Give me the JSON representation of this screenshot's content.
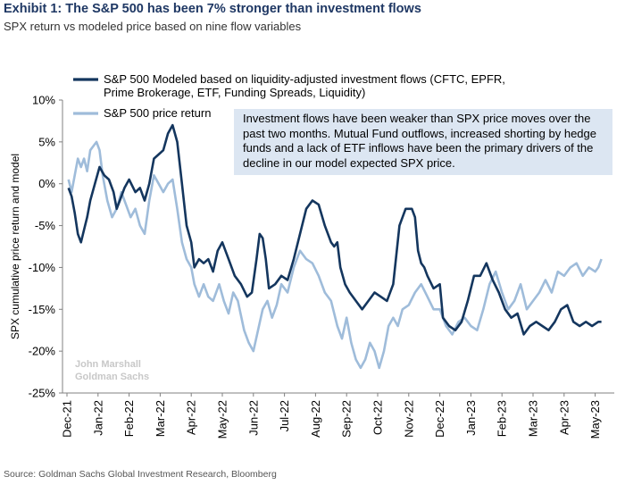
{
  "title": "Exhibit 1: The S&P 500 has been 7% stronger than investment flows",
  "subtitle": "SPX return vs modeled price based on nine flow variables",
  "source": "Source: Goldman Sachs Global Investment Research, Bloomberg",
  "watermark": [
    "John Marshall",
    "Goldman Sachs"
  ],
  "annotation": "Investment flows have been weaker than SPX price moves over the past two months. Mutual Fund outflows, increased shorting by hedge funds and a lack of ETF inflows have been the primary drivers of the decline in our model expected SPX price.",
  "colors": {
    "modeled": "#14365e",
    "price": "#9fbcda",
    "annotation_bg": "#dce6f2",
    "title": "#1f3864"
  },
  "chart_data": {
    "type": "line",
    "ylabel": "SPX cumulative price return and model",
    "ylim": [
      -25,
      10
    ],
    "yticks": [
      10,
      5,
      0,
      -5,
      -10,
      -15,
      -20,
      -25
    ],
    "ytick_labels": [
      "10%",
      "5%",
      "0%",
      "-5%",
      "-10%",
      "-15%",
      "-20%",
      "-25%"
    ],
    "xlim": [
      0,
      17.5
    ],
    "xtick_labels": [
      "Dec-21",
      "Jan-22",
      "Feb-22",
      "Mar-22",
      "Apr-22",
      "May-22",
      "Jun-22",
      "Jul-22",
      "Aug-22",
      "Sep-22",
      "Oct-22",
      "Nov-22",
      "Dec-22",
      "Jan-23",
      "Feb-23",
      "Mar-23",
      "Apr-23",
      "May-23"
    ],
    "legend_position": "top-left",
    "grid": false,
    "series": [
      {
        "name": "S&P 500 Modeled based on liquidity-adjusted investment flows (CFTC, EPFR, Prime Brokerage, ETF, Funding Spreads, Liquidity)",
        "legend_lines": [
          "S&P 500 Modeled based on liquidity-adjusted investment flows (CFTC, EPFR,",
          "Prime Brokerage, ETF, Funding Spreads, Liquidity)"
        ],
        "x": [
          0.05,
          0.15,
          0.25,
          0.35,
          0.45,
          0.55,
          0.65,
          0.75,
          0.9,
          1.05,
          1.2,
          1.35,
          1.5,
          1.6,
          1.7,
          1.85,
          2.0,
          2.2,
          2.35,
          2.5,
          2.65,
          2.8,
          2.95,
          3.1,
          3.25,
          3.4,
          3.55,
          3.7,
          3.85,
          4.0,
          4.1,
          4.25,
          4.4,
          4.55,
          4.7,
          4.85,
          5.0,
          5.2,
          5.4,
          5.6,
          5.8,
          5.95,
          6.1,
          6.2,
          6.3,
          6.4,
          6.5,
          6.7,
          6.9,
          7.1,
          7.3,
          7.5,
          7.7,
          7.9,
          8.1,
          8.3,
          8.5,
          8.6,
          8.7,
          8.8,
          8.95,
          9.1,
          9.3,
          9.5,
          9.7,
          9.9,
          10.1,
          10.3,
          10.5,
          10.7,
          10.9,
          11.1,
          11.2,
          11.3,
          11.4,
          11.5,
          11.6,
          11.8,
          12.0,
          12.1,
          12.3,
          12.5,
          12.7,
          12.9,
          13.1,
          13.3,
          13.5,
          13.7,
          13.9,
          14.1,
          14.3,
          14.5,
          14.7,
          14.9,
          15.1,
          15.3,
          15.5,
          15.7,
          15.9,
          16.1,
          16.3,
          16.5,
          16.7,
          16.9,
          17.1,
          17.2
        ],
        "values": [
          -0.5,
          -1.5,
          -3.5,
          -6.0,
          -7.0,
          -5.5,
          -4.0,
          -2.0,
          0.0,
          2.0,
          1.0,
          0.5,
          -1.0,
          -3.0,
          -2.0,
          -0.5,
          0.5,
          -1.0,
          -0.5,
          -2.0,
          0.0,
          3.0,
          3.5,
          4.0,
          6.0,
          7.0,
          5.0,
          0.0,
          -5.0,
          -7.0,
          -10.0,
          -9.0,
          -9.5,
          -9.0,
          -10.5,
          -8.0,
          -7.0,
          -9.0,
          -11.0,
          -12.0,
          -13.5,
          -13.0,
          -9.0,
          -6.0,
          -6.5,
          -9.0,
          -12.5,
          -12.0,
          -11.0,
          -11.5,
          -9.0,
          -6.0,
          -3.0,
          -2.0,
          -2.5,
          -5.0,
          -7.0,
          -7.5,
          -7.0,
          -10.0,
          -12.0,
          -13.0,
          -14.0,
          -15.0,
          -14.0,
          -13.0,
          -13.5,
          -14.0,
          -12.0,
          -5.0,
          -3.0,
          -3.0,
          -4.0,
          -8.0,
          -9.5,
          -10.0,
          -11.0,
          -12.5,
          -12.0,
          -16.0,
          -17.0,
          -17.5,
          -16.5,
          -14.0,
          -11.0,
          -11.0,
          -9.5,
          -11.5,
          -13.0,
          -15.0,
          -16.0,
          -15.5,
          -18.0,
          -17.0,
          -16.5,
          -17.0,
          -17.5,
          -16.5,
          -15.0,
          -14.5,
          -16.5,
          -17.0,
          -16.5,
          -17.0,
          -16.5,
          -16.5
        ]
      },
      {
        "name": "S&P 500 price return",
        "x": [
          0.05,
          0.15,
          0.25,
          0.35,
          0.45,
          0.55,
          0.65,
          0.75,
          0.85,
          0.95,
          1.05,
          1.15,
          1.3,
          1.45,
          1.6,
          1.75,
          1.9,
          2.05,
          2.2,
          2.35,
          2.5,
          2.65,
          2.8,
          2.95,
          3.1,
          3.25,
          3.4,
          3.55,
          3.7,
          3.85,
          4.0,
          4.1,
          4.25,
          4.4,
          4.55,
          4.7,
          4.9,
          5.05,
          5.2,
          5.35,
          5.5,
          5.7,
          5.85,
          6.0,
          6.15,
          6.3,
          6.45,
          6.6,
          6.75,
          6.9,
          7.1,
          7.3,
          7.5,
          7.7,
          7.9,
          8.1,
          8.3,
          8.5,
          8.7,
          8.85,
          9.0,
          9.15,
          9.3,
          9.45,
          9.6,
          9.75,
          9.9,
          10.05,
          10.2,
          10.35,
          10.5,
          10.65,
          10.8,
          11.0,
          11.2,
          11.4,
          11.6,
          11.8,
          12.0,
          12.2,
          12.4,
          12.6,
          12.8,
          13.0,
          13.2,
          13.4,
          13.6,
          13.8,
          14.0,
          14.2,
          14.4,
          14.6,
          14.8,
          15.0,
          15.2,
          15.4,
          15.6,
          15.8,
          16.0,
          16.2,
          16.4,
          16.6,
          16.8,
          17.0,
          17.1,
          17.2
        ],
        "values": [
          0.5,
          -1.0,
          1.0,
          3.0,
          2.0,
          3.0,
          1.5,
          4.0,
          4.5,
          5.0,
          4.0,
          1.0,
          -2.0,
          -4.0,
          -3.0,
          -1.0,
          -2.5,
          -4.0,
          -3.0,
          -5.0,
          -6.0,
          -2.0,
          1.0,
          0.0,
          -1.0,
          0.0,
          0.5,
          -3.0,
          -7.0,
          -9.0,
          -10.0,
          -12.0,
          -13.5,
          -12.0,
          -13.5,
          -14.0,
          -12.0,
          -14.0,
          -15.5,
          -13.0,
          -14.0,
          -17.5,
          -19.0,
          -20.0,
          -17.5,
          -15.0,
          -14.0,
          -16.0,
          -14.5,
          -12.0,
          -13.0,
          -10.0,
          -8.0,
          -9.0,
          -9.5,
          -11.0,
          -13.0,
          -14.0,
          -17.0,
          -18.5,
          -16.0,
          -19.0,
          -21.0,
          -22.0,
          -21.0,
          -19.0,
          -20.0,
          -22.0,
          -20.0,
          -17.0,
          -16.0,
          -17.0,
          -15.0,
          -14.5,
          -13.0,
          -12.0,
          -13.5,
          -15.0,
          -15.0,
          -17.0,
          -18.0,
          -16.5,
          -16.0,
          -17.0,
          -17.5,
          -15.0,
          -12.0,
          -10.5,
          -13.0,
          -15.0,
          -14.0,
          -12.0,
          -15.0,
          -14.0,
          -13.0,
          -11.5,
          -13.0,
          -10.5,
          -11.0,
          -10.0,
          -9.5,
          -11.0,
          -10.0,
          -10.5,
          -10.0,
          -9.0
        ]
      }
    ]
  }
}
